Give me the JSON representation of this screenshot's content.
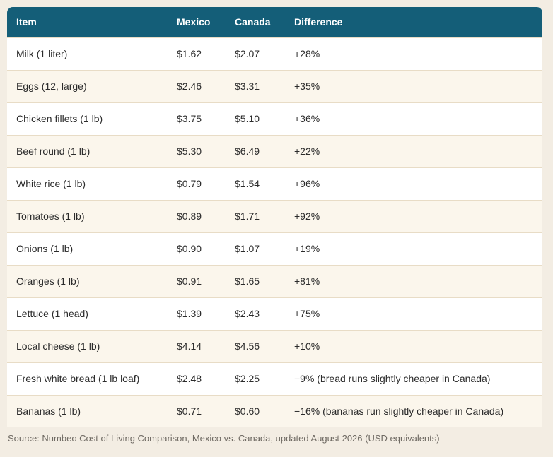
{
  "table": {
    "headers": {
      "item": "Item",
      "mexico": "Mexico",
      "canada": "Canada",
      "difference": "Difference"
    },
    "rows": [
      {
        "item": "Milk (1 liter)",
        "mexico": "$1.62",
        "canada": "$2.07",
        "difference": "+28%"
      },
      {
        "item": "Eggs (12, large)",
        "mexico": "$2.46",
        "canada": "$3.31",
        "difference": "+35%"
      },
      {
        "item": "Chicken fillets (1 lb)",
        "mexico": "$3.75",
        "canada": "$5.10",
        "difference": "+36%"
      },
      {
        "item": "Beef round (1 lb)",
        "mexico": "$5.30",
        "canada": "$6.49",
        "difference": "+22%"
      },
      {
        "item": "White rice (1 lb)",
        "mexico": "$0.79",
        "canada": "$1.54",
        "difference": "+96%"
      },
      {
        "item": "Tomatoes (1 lb)",
        "mexico": "$0.89",
        "canada": "$1.71",
        "difference": "+92%"
      },
      {
        "item": "Onions (1 lb)",
        "mexico": "$0.90",
        "canada": "$1.07",
        "difference": "+19%"
      },
      {
        "item": "Oranges (1 lb)",
        "mexico": "$0.91",
        "canada": "$1.65",
        "difference": "+81%"
      },
      {
        "item": "Lettuce (1 head)",
        "mexico": "$1.39",
        "canada": "$2.43",
        "difference": "+75%"
      },
      {
        "item": "Local cheese (1 lb)",
        "mexico": "$4.14",
        "canada": "$4.56",
        "difference": "+10%"
      },
      {
        "item": "Fresh white bread (1 lb loaf)",
        "mexico": "$2.48",
        "canada": "$2.25",
        "difference": "−9% (bread runs slightly cheaper in Canada)"
      },
      {
        "item": "Bananas (1 lb)",
        "mexico": "$0.71",
        "canada": "$0.60",
        "difference": "−16% (bananas run slightly cheaper in Canada)"
      }
    ]
  },
  "source": "Source: Numbeo Cost of Living Comparison, Mexico vs. Canada, updated August 2026 (USD equivalents)",
  "colors": {
    "header_bg": "#145e78",
    "page_bg": "#f3ede3",
    "row_alt": "#fbf6ec"
  }
}
